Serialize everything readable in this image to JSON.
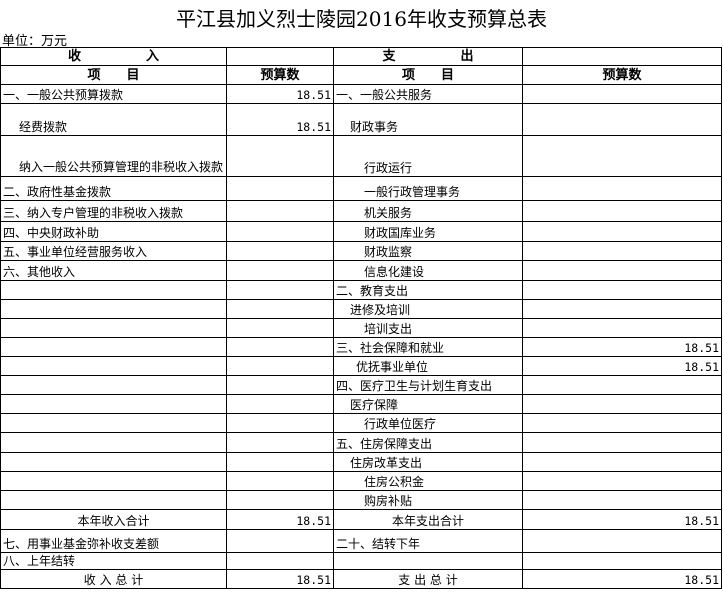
{
  "title": "平江县加义烈士陵园2016年收支预算总表",
  "unit": "单位：万元",
  "header": {
    "income": "收　　　　　入",
    "expense": "支　　　　　出",
    "item": "项　　目",
    "budget": "预算数"
  },
  "rows": [
    {
      "income": "一、一般公共预算拨款",
      "income_amount": "18.51",
      "expense": "一、一般公共服务",
      "expense_amount": ""
    },
    {
      "income": "经费拨款",
      "income_amount": "18.51",
      "expense": "财政事务",
      "expense_amount": ""
    },
    {
      "income": "纳入一般公共预算管理的非税收入拨款",
      "income_amount": "",
      "expense": "行政运行",
      "expense_amount": ""
    },
    {
      "income": "二、政府性基金拨款",
      "income_amount": "",
      "expense": "一般行政管理事务",
      "expense_amount": ""
    },
    {
      "income": "三、纳入专户管理的非税收入拨款",
      "income_amount": "",
      "expense": "机关服务",
      "expense_amount": ""
    },
    {
      "income": "四、中央财政补助",
      "income_amount": "",
      "expense": "财政国库业务",
      "expense_amount": ""
    },
    {
      "income": "五、事业单位经营服务收入",
      "income_amount": "",
      "expense": "财政监察",
      "expense_amount": ""
    },
    {
      "income": "六、其他收入",
      "income_amount": "",
      "expense": "信息化建设",
      "expense_amount": ""
    },
    {
      "income": "",
      "income_amount": "",
      "expense": "二、教育支出",
      "expense_amount": ""
    },
    {
      "income": "",
      "income_amount": "",
      "expense": "进修及培训",
      "expense_amount": ""
    },
    {
      "income": "",
      "income_amount": "",
      "expense": "培训支出",
      "expense_amount": ""
    },
    {
      "income": "",
      "income_amount": "",
      "expense": "三、社会保障和就业",
      "expense_amount": "18.51"
    },
    {
      "income": "",
      "income_amount": "",
      "expense": "优抚事业单位",
      "expense_amount": "18.51"
    },
    {
      "income": "",
      "income_amount": "",
      "expense": "四、医疗卫生与计划生育支出",
      "expense_amount": ""
    },
    {
      "income": "",
      "income_amount": "",
      "expense": "医疗保障",
      "expense_amount": ""
    },
    {
      "income": "",
      "income_amount": "",
      "expense": "行政单位医疗",
      "expense_amount": ""
    },
    {
      "income": "",
      "income_amount": "",
      "expense": "五、住房保障支出",
      "expense_amount": ""
    },
    {
      "income": "",
      "income_amount": "",
      "expense": "住房改革支出",
      "expense_amount": ""
    },
    {
      "income": "",
      "income_amount": "",
      "expense": "住房公积金",
      "expense_amount": ""
    },
    {
      "income": "",
      "income_amount": "",
      "expense": "购房补贴",
      "expense_amount": ""
    },
    {
      "income": "本年收入合计",
      "income_amount": "18.51",
      "expense": "本年支出合计",
      "expense_amount": "18.51"
    },
    {
      "income": "七、用事业基金弥补收支差额",
      "income_amount": "",
      "expense": "二十、结转下年",
      "expense_amount": ""
    },
    {
      "income": "八、上年结转",
      "income_amount": "",
      "expense": "",
      "expense_amount": ""
    },
    {
      "income": "收 入 总 计",
      "income_amount": "18.51",
      "expense": "支 出 总 计",
      "expense_amount": "18.51"
    }
  ]
}
